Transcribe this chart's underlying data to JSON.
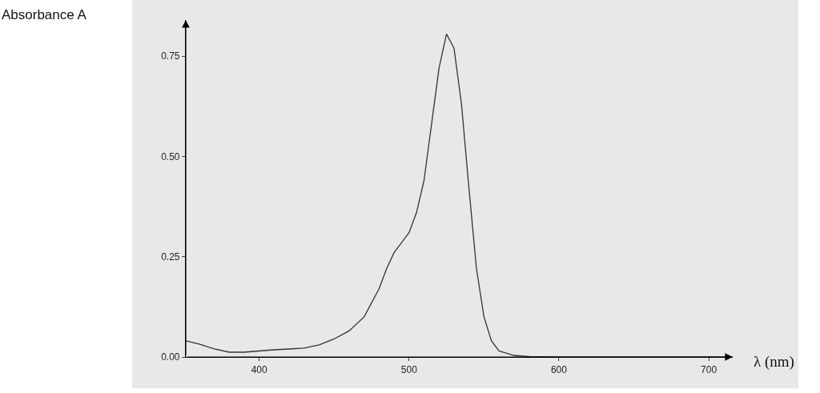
{
  "chart_data": {
    "type": "line",
    "xlabel": "λ (nm)",
    "annotations": [
      "Absorbance A"
    ],
    "x": [
      351,
      360,
      370,
      380,
      390,
      400,
      410,
      420,
      430,
      440,
      450,
      460,
      470,
      480,
      485,
      490,
      500,
      505,
      510,
      515,
      520,
      525,
      530,
      535,
      540,
      545,
      550,
      555,
      560,
      570,
      580,
      600,
      650,
      700,
      716
    ],
    "series": [
      {
        "color": "#333333",
        "values": [
          0.04,
          0.032,
          0.02,
          0.012,
          0.012,
          0.015,
          0.018,
          0.02,
          0.022,
          0.03,
          0.045,
          0.065,
          0.1,
          0.17,
          0.22,
          0.26,
          0.31,
          0.36,
          0.44,
          0.58,
          0.72,
          0.805,
          0.77,
          0.63,
          0.42,
          0.22,
          0.1,
          0.04,
          0.015,
          0.004,
          0.001,
          0,
          0,
          0,
          0
        ]
      }
    ],
    "xlim": [
      351,
      716
    ],
    "xticks": [
      400,
      500,
      600,
      700
    ],
    "ylim": [
      0,
      0.84
    ],
    "yticks": [
      {
        "value": 0,
        "label": "0.00"
      },
      {
        "value": 0.25,
        "label": "0.25"
      },
      {
        "value": 0.5,
        "label": "0.50"
      },
      {
        "value": 0.75,
        "label": "0.75"
      }
    ],
    "grid": false,
    "marker": "none",
    "line_style": "solid"
  }
}
